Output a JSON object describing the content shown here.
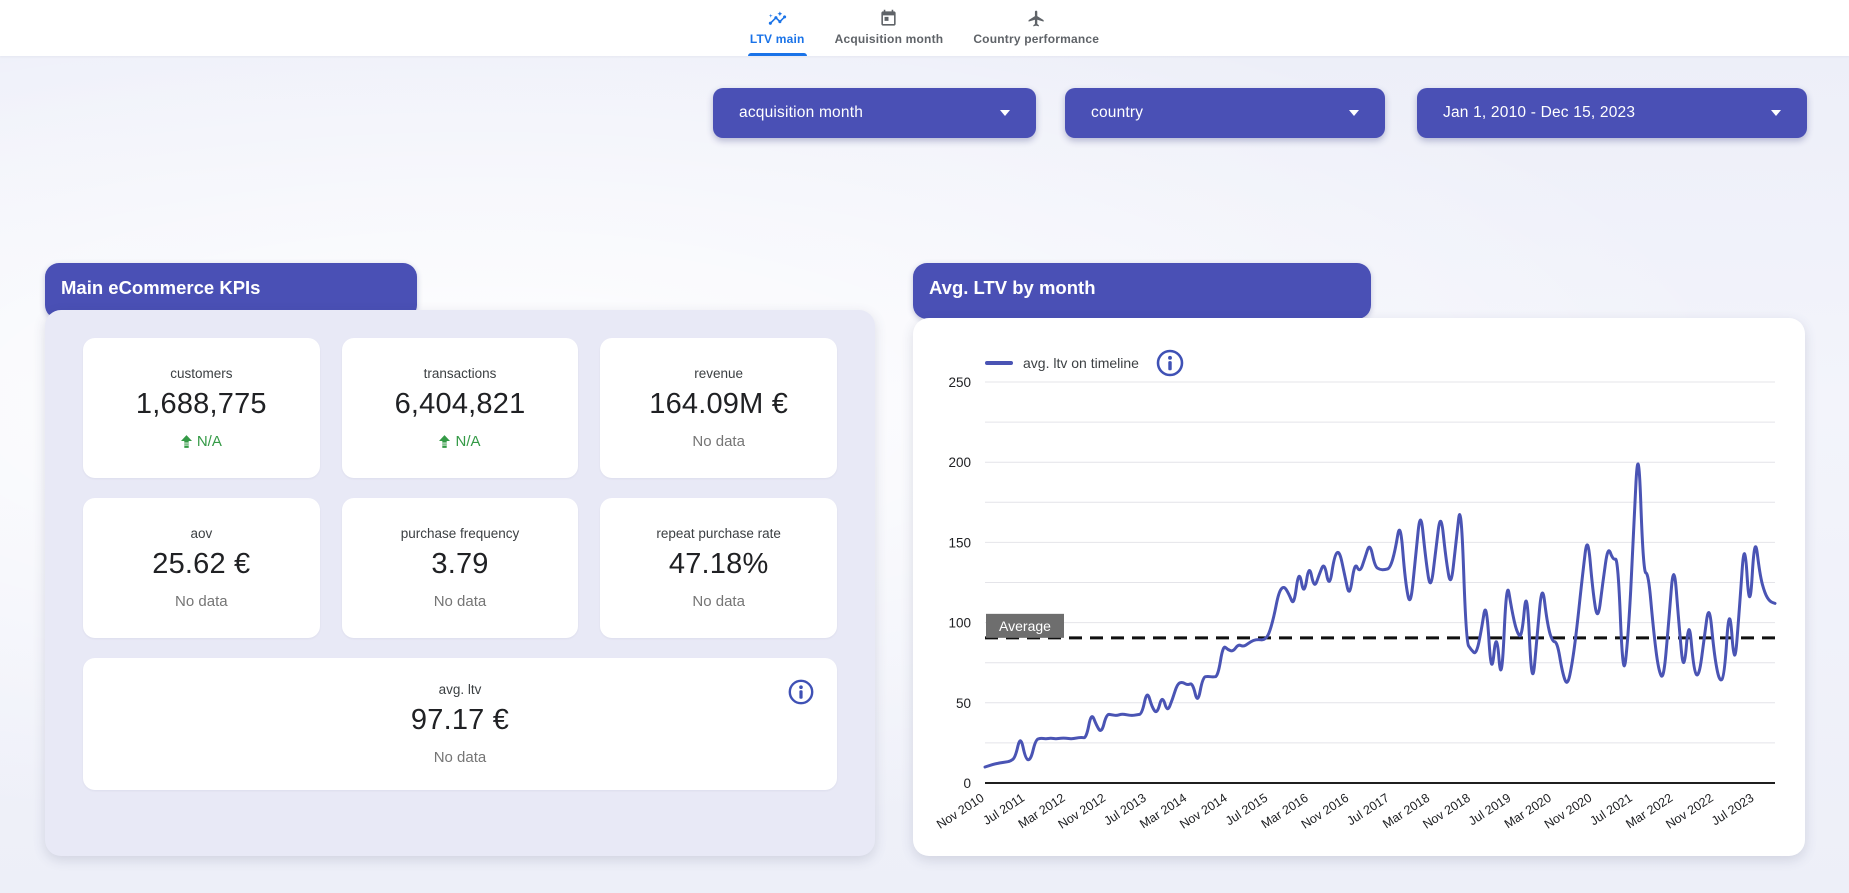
{
  "colors": {
    "accent_indigo": "#4a50b5",
    "line_indigo": "#4a54b4",
    "active_tab_blue": "#1a73e8",
    "inactive_tab_gray": "#5f6368",
    "delta_green": "#349a46",
    "no_data_gray": "#757575",
    "kpi_body_bg": "#e8e9f6",
    "average_badge_gray": "#6e6e6e",
    "gridline_gray": "#e4e4e9",
    "axis_dark": "#202124"
  },
  "nav": {
    "tabs": [
      {
        "label": "LTV main",
        "icon": "insights-chart-icon",
        "active": true
      },
      {
        "label": "Acquisition month",
        "icon": "calendar-icon",
        "active": false
      },
      {
        "label": "Country performance",
        "icon": "airplane-icon",
        "active": false
      }
    ]
  },
  "filters": [
    {
      "label": "acquisition month"
    },
    {
      "label": "country"
    },
    {
      "label": "Jan 1, 2010 - Dec 15, 2023"
    }
  ],
  "kpi_card": {
    "title": "Main eCommerce KPIs",
    "tiles": [
      {
        "label": "customers",
        "value": "1,688,775",
        "delta": "N/A",
        "has_up_arrow": true
      },
      {
        "label": "transactions",
        "value": "6,404,821",
        "delta": "N/A",
        "has_up_arrow": true
      },
      {
        "label": "revenue",
        "value": "164.09M €",
        "note": "No data"
      },
      {
        "label": "aov",
        "value": "25.62 €",
        "note": "No data"
      },
      {
        "label": "purchase frequency",
        "value": "3.79",
        "note": "No data"
      },
      {
        "label": "repeat purchase rate",
        "value": "47.18%",
        "note": "No data"
      }
    ],
    "avg_tile": {
      "label": "avg. ltv",
      "value": "97.17 €",
      "note": "No data"
    }
  },
  "chart_card": {
    "title": "Avg. LTV by month",
    "legend_label": "avg. ltv on timeline"
  },
  "chart_data": {
    "type": "line",
    "title": "Avg. LTV by month",
    "legend_entries": [
      "avg. ltv on timeline"
    ],
    "legend_position": "top-left",
    "x_start_month": "Nov 2010",
    "x_frequency": "monthly",
    "x_tick_every_months": 8,
    "x_tick_labels": [
      "Nov 2010",
      "Jul 2011",
      "Mar 2012",
      "Nov 2012",
      "Jul 2013",
      "Mar 2014",
      "Nov 2014",
      "Jul 2015",
      "Mar 2016",
      "Nov 2016",
      "Jul 2017",
      "Mar 2018",
      "Nov 2018",
      "Jul 2019",
      "Mar 2020",
      "Nov 2020",
      "Jul 2021",
      "Mar 2022",
      "Nov 2022",
      "Jul 2023"
    ],
    "ylim": [
      0,
      250
    ],
    "y_ticks": [
      0,
      50,
      100,
      150,
      200,
      250
    ],
    "grid_step": 25,
    "grid": true,
    "average_line": {
      "label": "Average",
      "value": 90.5,
      "style": "dashed-black"
    },
    "line_color": "#4a54b4",
    "series": [
      {
        "name": "avg. ltv on timeline",
        "values": [
          10,
          11,
          12,
          12.5,
          13,
          13.5,
          16,
          30,
          15,
          14,
          27,
          28,
          27.5,
          28,
          27.5,
          28,
          28,
          27.5,
          28,
          28.5,
          28,
          44,
          36,
          31,
          43,
          42.5,
          42,
          43,
          42.5,
          42,
          42.5,
          43,
          58,
          47,
          43,
          55,
          44,
          52,
          62,
          63,
          61,
          62.5,
          49,
          66,
          66.5,
          66,
          66.5,
          86,
          83,
          82,
          86.5,
          85,
          87,
          89,
          89.5,
          89,
          92,
          103,
          119,
          123,
          118,
          110,
          134,
          116,
          137,
          121,
          130,
          138,
          121,
          142,
          145,
          130,
          115,
          138,
          131,
          140,
          150,
          135,
          133,
          133,
          134,
          145,
          164,
          125,
          109,
          140,
          172,
          140,
          119,
          145,
          170,
          140,
          121,
          150,
          178,
          88,
          83,
          80,
          95,
          115,
          64,
          97,
          58,
          128,
          108,
          94,
          90,
          125,
          57,
          90,
          126,
          100,
          88,
          88,
          69,
          60,
          75,
          100,
          130,
          156,
          120,
          100,
          125,
          148,
          139,
          140,
          63,
          90,
          150,
          218,
          131,
          131,
          95,
          70,
          64,
          100,
          140,
          100,
          66,
          105,
          69,
          66,
          90,
          113,
          80,
          63,
          66,
          114,
          69,
          110,
          155,
          103,
          156,
          130,
          118,
          113,
          112
        ]
      }
    ]
  }
}
